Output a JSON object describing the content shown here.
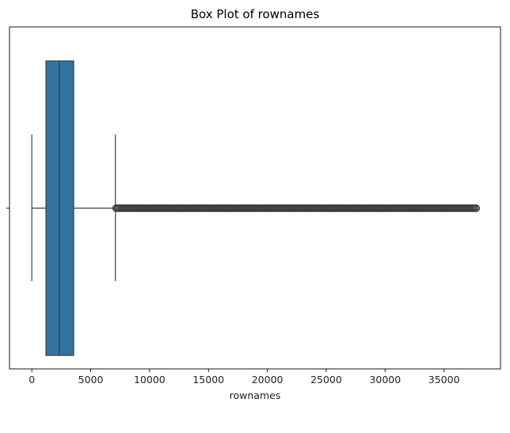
{
  "chart_data": {
    "type": "box",
    "orientation": "horizontal",
    "title": "Box Plot of rownames",
    "xlabel": "rownames",
    "ylabel": "",
    "xlim": [
      -1895,
      39796
    ],
    "x_ticks": [
      0,
      5000,
      10000,
      15000,
      20000,
      25000,
      30000,
      35000
    ],
    "x_tick_labels": [
      "0",
      "5000",
      "10000",
      "15000",
      "20000",
      "25000",
      "30000",
      "35000"
    ],
    "box_color": "#3274a1",
    "line_color": "#3d3d3d",
    "series": [
      {
        "whisker_low": 0,
        "q1": 1200,
        "median": 2350,
        "q3": 3550,
        "whisker_high": 7100,
        "outlier_range": [
          7150,
          37800
        ]
      }
    ]
  }
}
